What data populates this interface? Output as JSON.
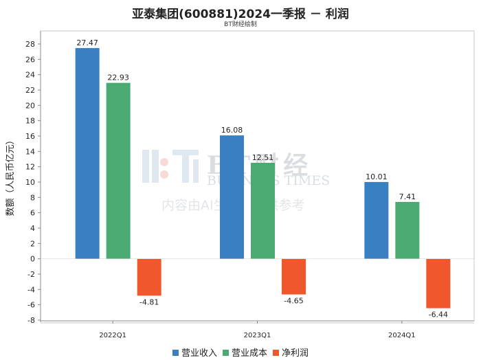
{
  "title": "亚泰集团(600881)2024一季报 － 利润",
  "subtitle": "BT财经绘制",
  "watermark": {
    "logo": "BT财经",
    "sub": "BUSINESS TIMES",
    "note": "内容由AI生成，仅供参考"
  },
  "chart_data": {
    "type": "bar",
    "title": "亚泰集团(600881)2024一季报 － 利润",
    "ylabel": "数额（人民币亿元）",
    "xlabel": "",
    "categories": [
      "2022Q1",
      "2023Q1",
      "2024Q1"
    ],
    "series": [
      {
        "name": "营业收入",
        "color": "#3a7fc1",
        "values": [
          27.47,
          16.08,
          10.01
        ]
      },
      {
        "name": "营业成本",
        "color": "#4aaa72",
        "values": [
          22.93,
          12.51,
          7.41
        ]
      },
      {
        "name": "净利润",
        "color": "#f0572c",
        "values": [
          -4.81,
          -4.65,
          -6.44
        ]
      }
    ],
    "ylim": [
      -8,
      28
    ],
    "yticks": [
      -8,
      -6,
      -4,
      -2,
      0,
      2,
      4,
      6,
      8,
      10,
      12,
      14,
      16,
      18,
      20,
      22,
      24,
      26,
      28
    ],
    "grid": false,
    "legend": "bottom"
  }
}
